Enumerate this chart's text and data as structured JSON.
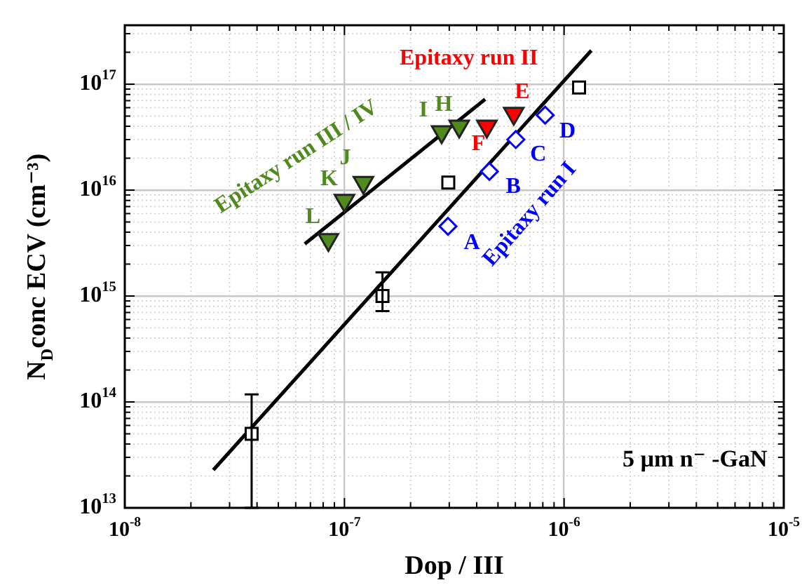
{
  "chart_data": {
    "type": "scatter",
    "xlabel": "Dop / III",
    "ylabel": "N$_{D}$conc ECV (cm⁻³)",
    "log": "xy",
    "grid": true,
    "legend": false,
    "xlim": [
      1e-08,
      1e-05
    ],
    "xticks": [
      {
        "value": 1e-08,
        "label": "10$^{-8}$"
      },
      {
        "value": 1e-07,
        "label": "10$^{-7}$"
      },
      {
        "value": 1e-06,
        "label": "10$^{-6}$"
      },
      {
        "value": 1e-05,
        "label": "10$^{-5}$"
      }
    ],
    "ylim": [
      10000000000000.0,
      3.6e+17
    ],
    "yticks": [
      {
        "value": 10000000000000.0,
        "label": "10$^{13}$"
      },
      {
        "value": 100000000000000.0,
        "label": "10$^{14}$"
      },
      {
        "value": 1000000000000000.0,
        "label": "10$^{15}$"
      },
      {
        "value": 1e+16,
        "label": "10$^{16}$"
      },
      {
        "value": 1e+17,
        "label": "10$^{17}$"
      }
    ],
    "series": [
      {
        "name": "Epitaxy run III / IV",
        "type": "scatter",
        "marker": "triangle",
        "color": "#4f8a1c",
        "x": [
          8.45e-08,
          1e-07,
          1.22e-07,
          2.77e-07,
          3.33e-07
        ],
        "values": [
          3400000000000000.0,
          8000000000000000.0,
          1.18e+16,
          3.55e+16,
          4e+16
        ]
      },
      {
        "name": "Epitaxy run II",
        "type": "scatter",
        "marker": "triangle",
        "color": "#ff0000",
        "x": [
          4.45e-07,
          5.9e-07
        ],
        "values": [
          4e+16,
          5.3e+16
        ]
      },
      {
        "name": "Epitaxy run I",
        "type": "scatter",
        "marker": "diamond",
        "color": "#0000ff",
        "x": [
          2.96e-07,
          4.57e-07,
          6.03e-07,
          8.2e-07
        ],
        "values": [
          4550000000000000.0,
          1.5e+16,
          3e+16,
          5.1e+16
        ]
      },
      {
        "type": "scatter",
        "marker": "square",
        "color": "#000000",
        "x": [
          3.78e-08,
          1.49e-07,
          2.97e-07,
          1.17e-06
        ],
        "values": [
          50000000000000.0,
          1000000000000000.0,
          1.18e+16,
          9.3e+16
        ],
        "errors": [
          [
            10000000000000.0,
            118000000000000.0
          ],
          [
            720000000000000.0,
            1670000000000000.0
          ],
          null,
          null
        ]
      },
      {
        "type": "line",
        "marker": "none",
        "color": "#000000",
        "x": [
          6.6e-08,
          4.37e-07
        ],
        "values": [
          3100000000000000.0,
          7.2e+16
        ]
      },
      {
        "type": "line",
        "marker": "none",
        "color": "#000000",
        "x": [
          2.53e-08,
          1.33e-06
        ],
        "values": [
          22800000000000.0,
          2.08e+17
        ]
      }
    ],
    "annotations": [
      {
        "text": "A",
        "x": 2.96e-07,
        "y": 4550000000000000.0
      },
      {
        "text": "B",
        "x": 4.57e-07,
        "y": 1.5e+16
      },
      {
        "text": "C",
        "x": 6.03e-07,
        "y": 3e+16
      },
      {
        "text": "D",
        "x": 8.2e-07,
        "y": 5.1e+16
      },
      {
        "text": "E",
        "x": 5.9e-07,
        "y": 5.3e+16
      },
      {
        "text": "F",
        "x": 4.45e-07,
        "y": 4e+16
      },
      {
        "text": "H",
        "x": 3.33e-07,
        "y": 4e+16
      },
      {
        "text": "I",
        "x": 2.77e-07,
        "y": 3.55e+16
      },
      {
        "text": "J",
        "x": 1.22e-07,
        "y": 1.18e+16
      },
      {
        "text": "K",
        "x": 1e-07,
        "y": 8000000000000000.0
      },
      {
        "text": "L",
        "x": 8.45e-08,
        "y": 3400000000000000.0
      },
      "5 µm n⁻ -GaN"
    ]
  }
}
